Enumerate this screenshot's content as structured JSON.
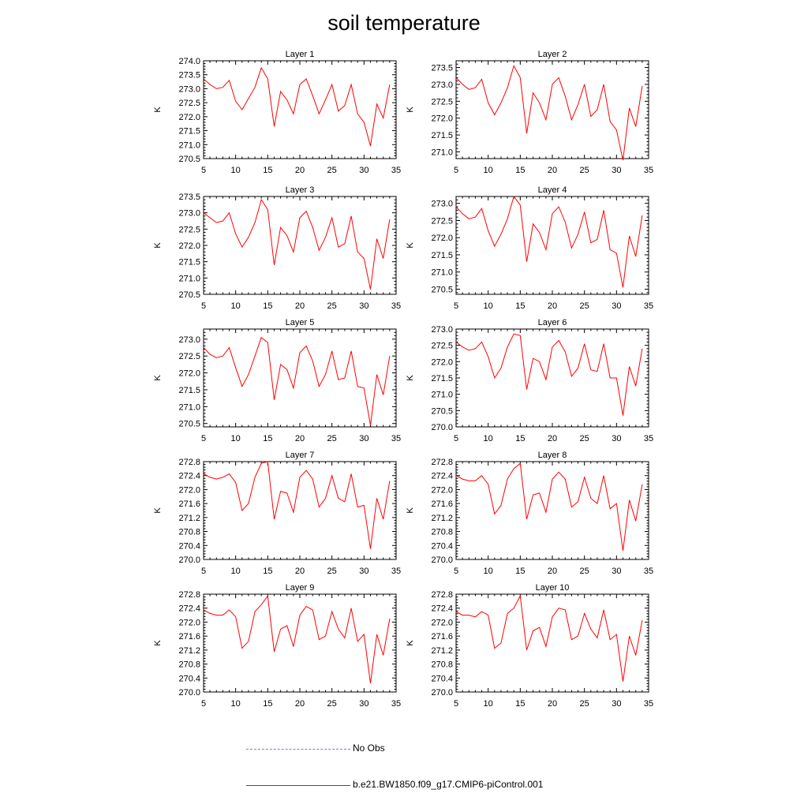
{
  "title": "soil temperature",
  "colors": {
    "model": "#ff0000",
    "obs": "#7f7fd0",
    "axis": "#000000"
  },
  "legend": [
    {
      "label": "No Obs",
      "style": "dashed",
      "color": "#7f7fd0"
    },
    {
      "label": "b.e21.BW1850.f09_g17.CMIP6-piControl.001",
      "style": "solid",
      "color": "#ff0000"
    }
  ],
  "chart_data": [
    {
      "type": "line",
      "title": "Layer 1",
      "ylabel": "K",
      "xlim": [
        5,
        35
      ],
      "ylim": [
        270.5,
        274.0
      ],
      "xticks": [
        5,
        10,
        15,
        20,
        25,
        30,
        35
      ],
      "yticks": [
        270.5,
        271.0,
        271.5,
        272.0,
        272.5,
        273.0,
        273.5,
        274.0
      ],
      "ydec": 1,
      "series": [
        {
          "color": "#ff0000",
          "x": [
            5,
            6,
            7,
            8,
            9,
            10,
            11,
            12,
            13,
            14,
            15,
            16,
            17,
            18,
            19,
            20,
            21,
            22,
            23,
            24,
            25,
            26,
            27,
            28,
            29,
            30,
            31,
            32,
            33,
            34
          ],
          "values": [
            273.35,
            273.15,
            273.0,
            273.05,
            273.3,
            272.55,
            272.25,
            272.65,
            273.05,
            273.75,
            273.35,
            271.65,
            272.9,
            272.6,
            272.1,
            273.15,
            273.35,
            272.75,
            272.1,
            272.6,
            273.15,
            272.2,
            272.4,
            273.15,
            272.1,
            271.8,
            270.95,
            272.45,
            271.95,
            273.15
          ]
        }
      ]
    },
    {
      "type": "line",
      "title": "Layer 2",
      "ylabel": "K",
      "xlim": [
        5,
        35
      ],
      "ylim": [
        270.8,
        273.7
      ],
      "xticks": [
        5,
        10,
        15,
        20,
        25,
        30,
        35
      ],
      "yticks": [
        271.0,
        271.5,
        272.0,
        272.5,
        273.0,
        273.5
      ],
      "ydec": 1,
      "series": [
        {
          "color": "#ff0000",
          "x": [
            5,
            6,
            7,
            8,
            9,
            10,
            11,
            12,
            13,
            14,
            15,
            16,
            17,
            18,
            19,
            20,
            21,
            22,
            23,
            24,
            25,
            26,
            27,
            28,
            29,
            30,
            31,
            32,
            33,
            34
          ],
          "values": [
            273.2,
            273.0,
            272.85,
            272.9,
            273.15,
            272.45,
            272.1,
            272.45,
            272.9,
            273.55,
            273.2,
            271.55,
            272.75,
            272.45,
            271.95,
            273.0,
            273.2,
            272.65,
            271.95,
            272.4,
            273.0,
            272.05,
            272.25,
            273.0,
            271.9,
            271.65,
            270.75,
            272.3,
            271.75,
            272.95
          ]
        }
      ]
    },
    {
      "type": "line",
      "title": "Layer 3",
      "ylabel": "K",
      "xlim": [
        5,
        35
      ],
      "ylim": [
        270.5,
        273.5
      ],
      "xticks": [
        5,
        10,
        15,
        20,
        25,
        30,
        35
      ],
      "yticks": [
        270.5,
        271.0,
        271.5,
        272.0,
        272.5,
        273.0,
        273.5
      ],
      "ydec": 1,
      "series": [
        {
          "color": "#ff0000",
          "x": [
            5,
            6,
            7,
            8,
            9,
            10,
            11,
            12,
            13,
            14,
            15,
            16,
            17,
            18,
            19,
            20,
            21,
            22,
            23,
            24,
            25,
            26,
            27,
            28,
            29,
            30,
            31,
            32,
            33,
            34
          ],
          "values": [
            273.0,
            272.85,
            272.7,
            272.75,
            273.0,
            272.35,
            271.95,
            272.25,
            272.7,
            273.4,
            273.1,
            271.4,
            272.55,
            272.3,
            271.8,
            272.85,
            273.05,
            272.55,
            271.85,
            272.25,
            272.85,
            271.95,
            272.05,
            272.9,
            271.8,
            271.6,
            270.65,
            272.2,
            271.6,
            272.8
          ]
        }
      ]
    },
    {
      "type": "line",
      "title": "Layer 4",
      "ylabel": "K",
      "xlim": [
        5,
        35
      ],
      "ylim": [
        270.35,
        273.2
      ],
      "xticks": [
        5,
        10,
        15,
        20,
        25,
        30,
        35
      ],
      "yticks": [
        270.5,
        271.0,
        271.5,
        272.0,
        272.5,
        273.0
      ],
      "ydec": 1,
      "series": [
        {
          "color": "#ff0000",
          "x": [
            5,
            6,
            7,
            8,
            9,
            10,
            11,
            12,
            13,
            14,
            15,
            16,
            17,
            18,
            19,
            20,
            21,
            22,
            23,
            24,
            25,
            26,
            27,
            28,
            29,
            30,
            31,
            32,
            33,
            34
          ],
          "values": [
            272.9,
            272.7,
            272.55,
            272.6,
            272.85,
            272.2,
            271.75,
            272.1,
            272.55,
            273.2,
            272.95,
            271.3,
            272.4,
            272.15,
            271.65,
            272.7,
            272.9,
            272.45,
            271.7,
            272.1,
            272.75,
            271.85,
            271.95,
            272.8,
            271.65,
            271.55,
            270.55,
            272.05,
            271.45,
            272.65
          ]
        }
      ]
    },
    {
      "type": "line",
      "title": "Layer 5",
      "ylabel": "K",
      "xlim": [
        5,
        35
      ],
      "ylim": [
        270.4,
        273.3
      ],
      "xticks": [
        5,
        10,
        15,
        20,
        25,
        30,
        35
      ],
      "yticks": [
        270.5,
        271.0,
        271.5,
        272.0,
        272.5,
        273.0
      ],
      "ydec": 1,
      "series": [
        {
          "color": "#ff0000",
          "x": [
            5,
            6,
            7,
            8,
            9,
            10,
            11,
            12,
            13,
            14,
            15,
            16,
            17,
            18,
            19,
            20,
            21,
            22,
            23,
            24,
            25,
            26,
            27,
            28,
            29,
            30,
            31,
            32,
            33,
            34
          ],
          "values": [
            272.75,
            272.55,
            272.45,
            272.5,
            272.75,
            272.15,
            271.6,
            271.95,
            272.5,
            273.05,
            272.9,
            271.2,
            272.25,
            272.1,
            271.55,
            272.6,
            272.8,
            272.35,
            271.6,
            271.95,
            272.65,
            271.8,
            271.85,
            272.65,
            271.6,
            271.55,
            270.45,
            271.95,
            271.35,
            272.5
          ]
        }
      ]
    },
    {
      "type": "line",
      "title": "Layer 6",
      "ylabel": "K",
      "xlim": [
        5,
        35
      ],
      "ylim": [
        270.0,
        273.0
      ],
      "xticks": [
        5,
        10,
        15,
        20,
        25,
        30,
        35
      ],
      "yticks": [
        270.0,
        270.5,
        271.0,
        271.5,
        272.0,
        272.5,
        273.0
      ],
      "ydec": 1,
      "series": [
        {
          "color": "#ff0000",
          "x": [
            5,
            6,
            7,
            8,
            9,
            10,
            11,
            12,
            13,
            14,
            15,
            16,
            17,
            18,
            19,
            20,
            21,
            22,
            23,
            24,
            25,
            26,
            27,
            28,
            29,
            30,
            31,
            32,
            33,
            34
          ],
          "values": [
            272.6,
            272.45,
            272.35,
            272.4,
            272.6,
            272.15,
            271.5,
            271.8,
            272.45,
            272.85,
            272.8,
            271.15,
            272.1,
            272.0,
            271.45,
            272.45,
            272.65,
            272.3,
            271.55,
            271.8,
            272.55,
            271.75,
            271.7,
            272.55,
            271.5,
            271.5,
            270.35,
            271.85,
            271.25,
            272.4
          ]
        }
      ]
    },
    {
      "type": "line",
      "title": "Layer 7",
      "ylabel": "K",
      "xlim": [
        5,
        35
      ],
      "ylim": [
        270.0,
        272.8
      ],
      "xticks": [
        5,
        10,
        15,
        20,
        25,
        30,
        35
      ],
      "yticks": [
        270.0,
        270.4,
        270.8,
        271.2,
        271.6,
        272.0,
        272.4,
        272.8
      ],
      "ydec": 1,
      "series": [
        {
          "color": "#ff0000",
          "x": [
            5,
            6,
            7,
            8,
            9,
            10,
            11,
            12,
            13,
            14,
            15,
            16,
            17,
            18,
            19,
            20,
            21,
            22,
            23,
            24,
            25,
            26,
            27,
            28,
            29,
            30,
            31,
            32,
            33,
            34
          ],
          "values": [
            272.45,
            272.35,
            272.3,
            272.35,
            272.45,
            272.2,
            271.4,
            271.6,
            272.35,
            272.75,
            272.8,
            271.15,
            271.95,
            271.9,
            271.35,
            272.35,
            272.55,
            272.3,
            271.5,
            271.75,
            272.4,
            271.75,
            271.65,
            272.45,
            271.5,
            271.55,
            270.3,
            271.75,
            271.15,
            272.25
          ]
        }
      ]
    },
    {
      "type": "line",
      "title": "Layer 8",
      "ylabel": "K",
      "xlim": [
        5,
        35
      ],
      "ylim": [
        270.0,
        272.8
      ],
      "xticks": [
        5,
        10,
        15,
        20,
        25,
        30,
        35
      ],
      "yticks": [
        270.0,
        270.4,
        270.8,
        271.2,
        271.6,
        272.0,
        272.4,
        272.8
      ],
      "ydec": 1,
      "series": [
        {
          "color": "#ff0000",
          "x": [
            5,
            6,
            7,
            8,
            9,
            10,
            11,
            12,
            13,
            14,
            15,
            16,
            17,
            18,
            19,
            20,
            21,
            22,
            23,
            24,
            25,
            26,
            27,
            28,
            29,
            30,
            31,
            32,
            33,
            34
          ],
          "values": [
            272.4,
            272.3,
            272.25,
            272.25,
            272.4,
            272.15,
            271.3,
            271.55,
            272.3,
            272.6,
            272.75,
            271.15,
            271.85,
            271.9,
            271.35,
            272.3,
            272.5,
            272.3,
            271.5,
            271.65,
            272.35,
            271.75,
            271.6,
            272.4,
            271.45,
            271.6,
            270.25,
            271.7,
            271.1,
            272.15
          ]
        }
      ]
    },
    {
      "type": "line",
      "title": "Layer 9",
      "ylabel": "K",
      "xlim": [
        5,
        35
      ],
      "ylim": [
        270.0,
        272.8
      ],
      "xticks": [
        5,
        10,
        15,
        20,
        25,
        30,
        35
      ],
      "yticks": [
        270.0,
        270.4,
        270.8,
        271.2,
        271.6,
        272.0,
        272.4,
        272.8
      ],
      "ydec": 1,
      "series": [
        {
          "color": "#ff0000",
          "x": [
            5,
            6,
            7,
            8,
            9,
            10,
            11,
            12,
            13,
            14,
            15,
            16,
            17,
            18,
            19,
            20,
            21,
            22,
            23,
            24,
            25,
            26,
            27,
            28,
            29,
            30,
            31,
            32,
            33,
            34
          ],
          "values": [
            272.35,
            272.25,
            272.2,
            272.2,
            272.35,
            272.15,
            271.25,
            271.45,
            272.3,
            272.5,
            272.75,
            271.15,
            271.8,
            271.9,
            271.3,
            272.2,
            272.45,
            272.35,
            271.5,
            271.6,
            272.3,
            271.8,
            271.55,
            272.4,
            271.45,
            271.65,
            270.25,
            271.65,
            271.05,
            272.1
          ]
        }
      ]
    },
    {
      "type": "line",
      "title": "Layer 10",
      "ylabel": "K",
      "xlim": [
        5,
        35
      ],
      "ylim": [
        270.0,
        272.8
      ],
      "xticks": [
        5,
        10,
        15,
        20,
        25,
        30,
        35
      ],
      "yticks": [
        270.0,
        270.4,
        270.8,
        271.2,
        271.6,
        272.0,
        272.4,
        272.8
      ],
      "ydec": 1,
      "series": [
        {
          "color": "#ff0000",
          "x": [
            5,
            6,
            7,
            8,
            9,
            10,
            11,
            12,
            13,
            14,
            15,
            16,
            17,
            18,
            19,
            20,
            21,
            22,
            23,
            24,
            25,
            26,
            27,
            28,
            29,
            30,
            31,
            32,
            33,
            34
          ],
          "values": [
            272.3,
            272.2,
            272.2,
            272.15,
            272.3,
            272.2,
            271.25,
            271.4,
            272.25,
            272.4,
            272.75,
            271.2,
            271.75,
            271.85,
            271.3,
            272.15,
            272.4,
            272.35,
            271.5,
            271.6,
            272.25,
            271.8,
            271.55,
            272.35,
            271.5,
            271.65,
            270.3,
            271.6,
            271.05,
            272.05
          ]
        }
      ]
    }
  ]
}
